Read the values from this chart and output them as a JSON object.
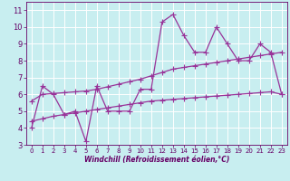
{
  "xlabel": "Windchill (Refroidissement éolien,°C)",
  "bg_color": "#c8eef0",
  "line_color": "#993399",
  "grid_color": "#aadddd",
  "xlim": [
    -0.5,
    23.5
  ],
  "ylim": [
    3,
    11.5
  ],
  "yticks": [
    3,
    4,
    5,
    6,
    7,
    8,
    9,
    10,
    11
  ],
  "xticks": [
    0,
    1,
    2,
    3,
    4,
    5,
    6,
    7,
    8,
    9,
    10,
    11,
    12,
    13,
    14,
    15,
    16,
    17,
    18,
    19,
    20,
    21,
    22,
    23
  ],
  "line1_x": [
    0,
    1,
    2,
    3,
    4,
    5,
    6,
    7,
    8,
    9,
    10,
    11,
    12,
    13,
    14,
    15,
    16,
    17,
    18,
    19,
    20,
    21,
    22,
    23
  ],
  "line1_y": [
    4.0,
    6.5,
    6.0,
    4.8,
    5.0,
    3.2,
    6.5,
    5.0,
    5.0,
    5.0,
    6.3,
    6.3,
    10.3,
    10.75,
    9.5,
    8.5,
    8.5,
    10.0,
    9.0,
    8.0,
    8.0,
    9.0,
    8.5,
    6.0
  ],
  "line2_x": [
    0,
    1,
    2,
    3,
    4,
    5,
    6,
    7,
    8,
    9,
    10,
    11,
    12,
    13,
    14,
    15,
    16,
    17,
    18,
    19,
    20,
    21,
    22,
    23
  ],
  "line2_y": [
    5.6,
    6.0,
    6.05,
    6.1,
    6.15,
    6.2,
    6.3,
    6.45,
    6.6,
    6.75,
    6.9,
    7.1,
    7.3,
    7.5,
    7.6,
    7.7,
    7.8,
    7.9,
    8.0,
    8.1,
    8.2,
    8.3,
    8.4,
    8.5
  ],
  "line3_x": [
    0,
    1,
    2,
    3,
    4,
    5,
    6,
    7,
    8,
    9,
    10,
    11,
    12,
    13,
    14,
    15,
    16,
    17,
    18,
    19,
    20,
    21,
    22,
    23
  ],
  "line3_y": [
    4.4,
    4.55,
    4.7,
    4.8,
    4.9,
    5.0,
    5.1,
    5.2,
    5.3,
    5.4,
    5.5,
    5.6,
    5.65,
    5.7,
    5.75,
    5.8,
    5.85,
    5.9,
    5.95,
    6.0,
    6.05,
    6.1,
    6.15,
    6.0
  ]
}
